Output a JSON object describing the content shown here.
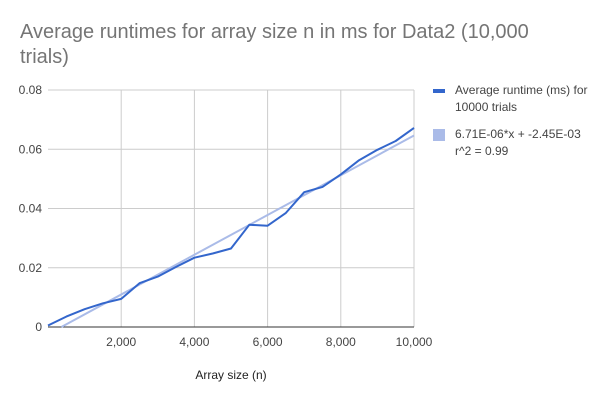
{
  "chart_data": {
    "type": "line",
    "title": "Average runtimes for array size n in ms for Data2 (10,000 trials)",
    "xlabel": "Array size (n)",
    "ylabel": "",
    "xlim": [
      0,
      10000
    ],
    "ylim": [
      0,
      0.08
    ],
    "x_ticks": [
      0,
      2000,
      4000,
      6000,
      8000,
      10000
    ],
    "x_tick_labels": [
      "",
      "2,000",
      "4,000",
      "6,000",
      "8,000",
      "10,000"
    ],
    "y_ticks": [
      0,
      0.02,
      0.04,
      0.06,
      0.08
    ],
    "y_tick_labels": [
      "0",
      "0.02",
      "0.04",
      "0.06",
      "0.08"
    ],
    "grid": true,
    "legend_position": "right",
    "series": [
      {
        "name": "Average runtime (ms) for 10000 trials",
        "color": "#3366cc",
        "x": [
          0,
          500,
          1000,
          1500,
          2000,
          2500,
          3000,
          3500,
          4000,
          4500,
          5000,
          5500,
          6000,
          6500,
          7000,
          7500,
          8000,
          8500,
          9000,
          9500,
          10000
        ],
        "y": [
          0.0005,
          0.0035,
          0.006,
          0.008,
          0.0095,
          0.0148,
          0.017,
          0.0203,
          0.0234,
          0.0248,
          0.0265,
          0.0345,
          0.0342,
          0.0385,
          0.0455,
          0.0473,
          0.0515,
          0.0563,
          0.0598,
          0.0628,
          0.0672
        ]
      },
      {
        "name": "6.71E-06*x + -2.45E-03\nr^2 = 0.99",
        "color": "#aabbe8",
        "trendline": {
          "slope": 6.71e-06,
          "intercept": -0.00245
        }
      }
    ]
  }
}
